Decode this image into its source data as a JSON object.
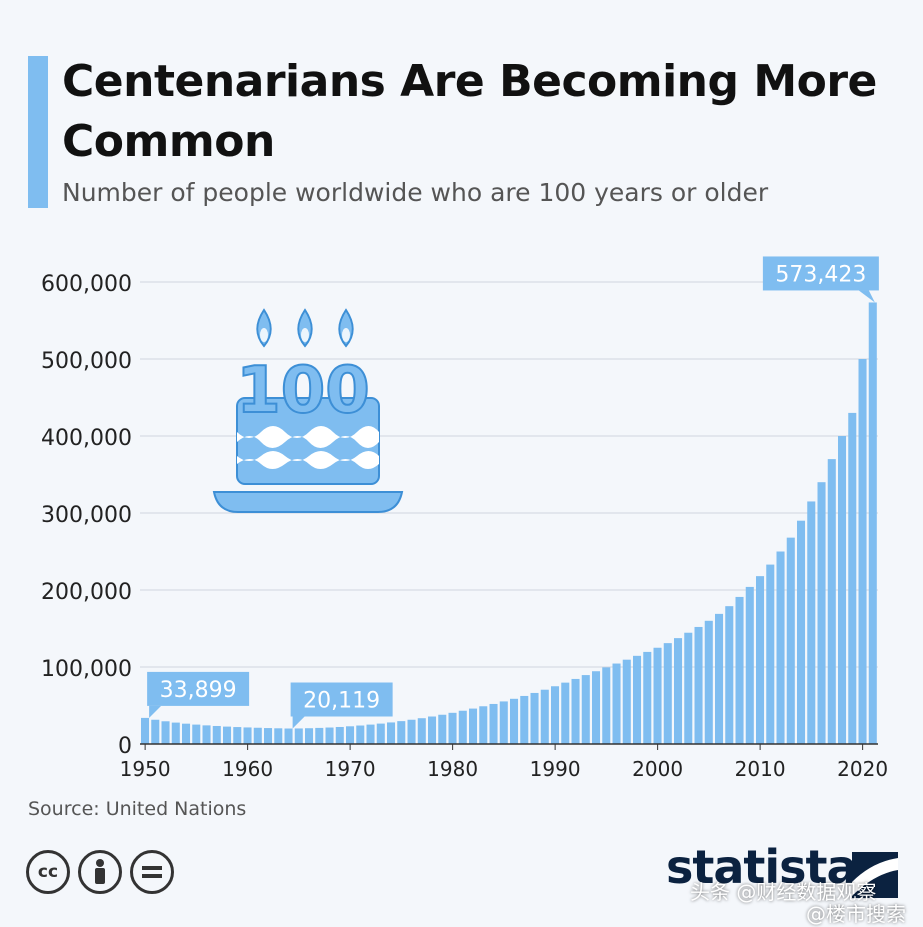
{
  "header": {
    "title": "Centenarians Are Becoming More Common",
    "subtitle": "Number of people worldwide who are 100 years or older"
  },
  "chart_data": {
    "type": "bar",
    "title": "Centenarians Are Becoming More Common",
    "subtitle": "Number of people worldwide who are 100 years or older",
    "xlabel": "",
    "ylabel": "",
    "ylim": [
      0,
      600000
    ],
    "xlim": [
      1950,
      2021
    ],
    "yticks": [
      0,
      100000,
      200000,
      300000,
      400000,
      500000,
      600000
    ],
    "ytick_labels": [
      "0",
      "100,000",
      "200,000",
      "300,000",
      "400,000",
      "500,000",
      "600,000"
    ],
    "xticks": [
      1950,
      1960,
      1970,
      1980,
      1990,
      2000,
      2010,
      2020
    ],
    "xtick_labels": [
      "1950",
      "1960",
      "1970",
      "1980",
      "1990",
      "2000",
      "2010",
      "2020"
    ],
    "grid": "horizontal",
    "bar_color": "#7fbdf0",
    "years": [
      1950,
      1951,
      1952,
      1953,
      1954,
      1955,
      1956,
      1957,
      1958,
      1959,
      1960,
      1961,
      1962,
      1963,
      1964,
      1965,
      1966,
      1967,
      1968,
      1969,
      1970,
      1971,
      1972,
      1973,
      1974,
      1975,
      1976,
      1977,
      1978,
      1979,
      1980,
      1981,
      1982,
      1983,
      1984,
      1985,
      1986,
      1987,
      1988,
      1989,
      1990,
      1991,
      1992,
      1993,
      1994,
      1995,
      1996,
      1997,
      1998,
      1999,
      2000,
      2001,
      2002,
      2003,
      2004,
      2005,
      2006,
      2007,
      2008,
      2009,
      2010,
      2011,
      2012,
      2013,
      2014,
      2015,
      2016,
      2017,
      2018,
      2019,
      2020,
      2021
    ],
    "values": [
      33899,
      31500,
      29500,
      27800,
      26400,
      25200,
      24200,
      23400,
      22600,
      22000,
      21500,
      21100,
      20700,
      20400,
      20119,
      20200,
      20500,
      20900,
      21400,
      22100,
      23000,
      24000,
      25200,
      26500,
      28000,
      29700,
      31500,
      33500,
      35700,
      38000,
      40500,
      43200,
      46000,
      49000,
      52000,
      55300,
      58700,
      62400,
      66300,
      70500,
      75000,
      79700,
      84500,
      89500,
      94500,
      99500,
      104500,
      109500,
      114500,
      119600,
      125000,
      131000,
      137500,
      144500,
      152000,
      160000,
      169000,
      179000,
      191000,
      204000,
      218000,
      233000,
      250000,
      268000,
      290000,
      315000,
      340000,
      370000,
      400000,
      430000,
      500000,
      573423
    ],
    "annotations": [
      {
        "label": "33,899",
        "year": 1950,
        "value": 33899
      },
      {
        "label": "20,119",
        "year": 1964,
        "value": 20119
      },
      {
        "label": "573,423",
        "year": 2021,
        "value": 573423
      }
    ]
  },
  "source": "Source: United Nations",
  "license_icons": [
    "cc-icon",
    "by-icon",
    "nd-icon"
  ],
  "illustration": {
    "icon": "birthday-cake-icon",
    "text": "100"
  },
  "brand": "statista",
  "watermark": [
    "头条 @财经数据观察",
    "@楼市搜索"
  ],
  "colors": {
    "accent": "#7fbdf0",
    "text": "#111111",
    "grid": "#cfd6df",
    "callout": "#7fbdf0"
  }
}
